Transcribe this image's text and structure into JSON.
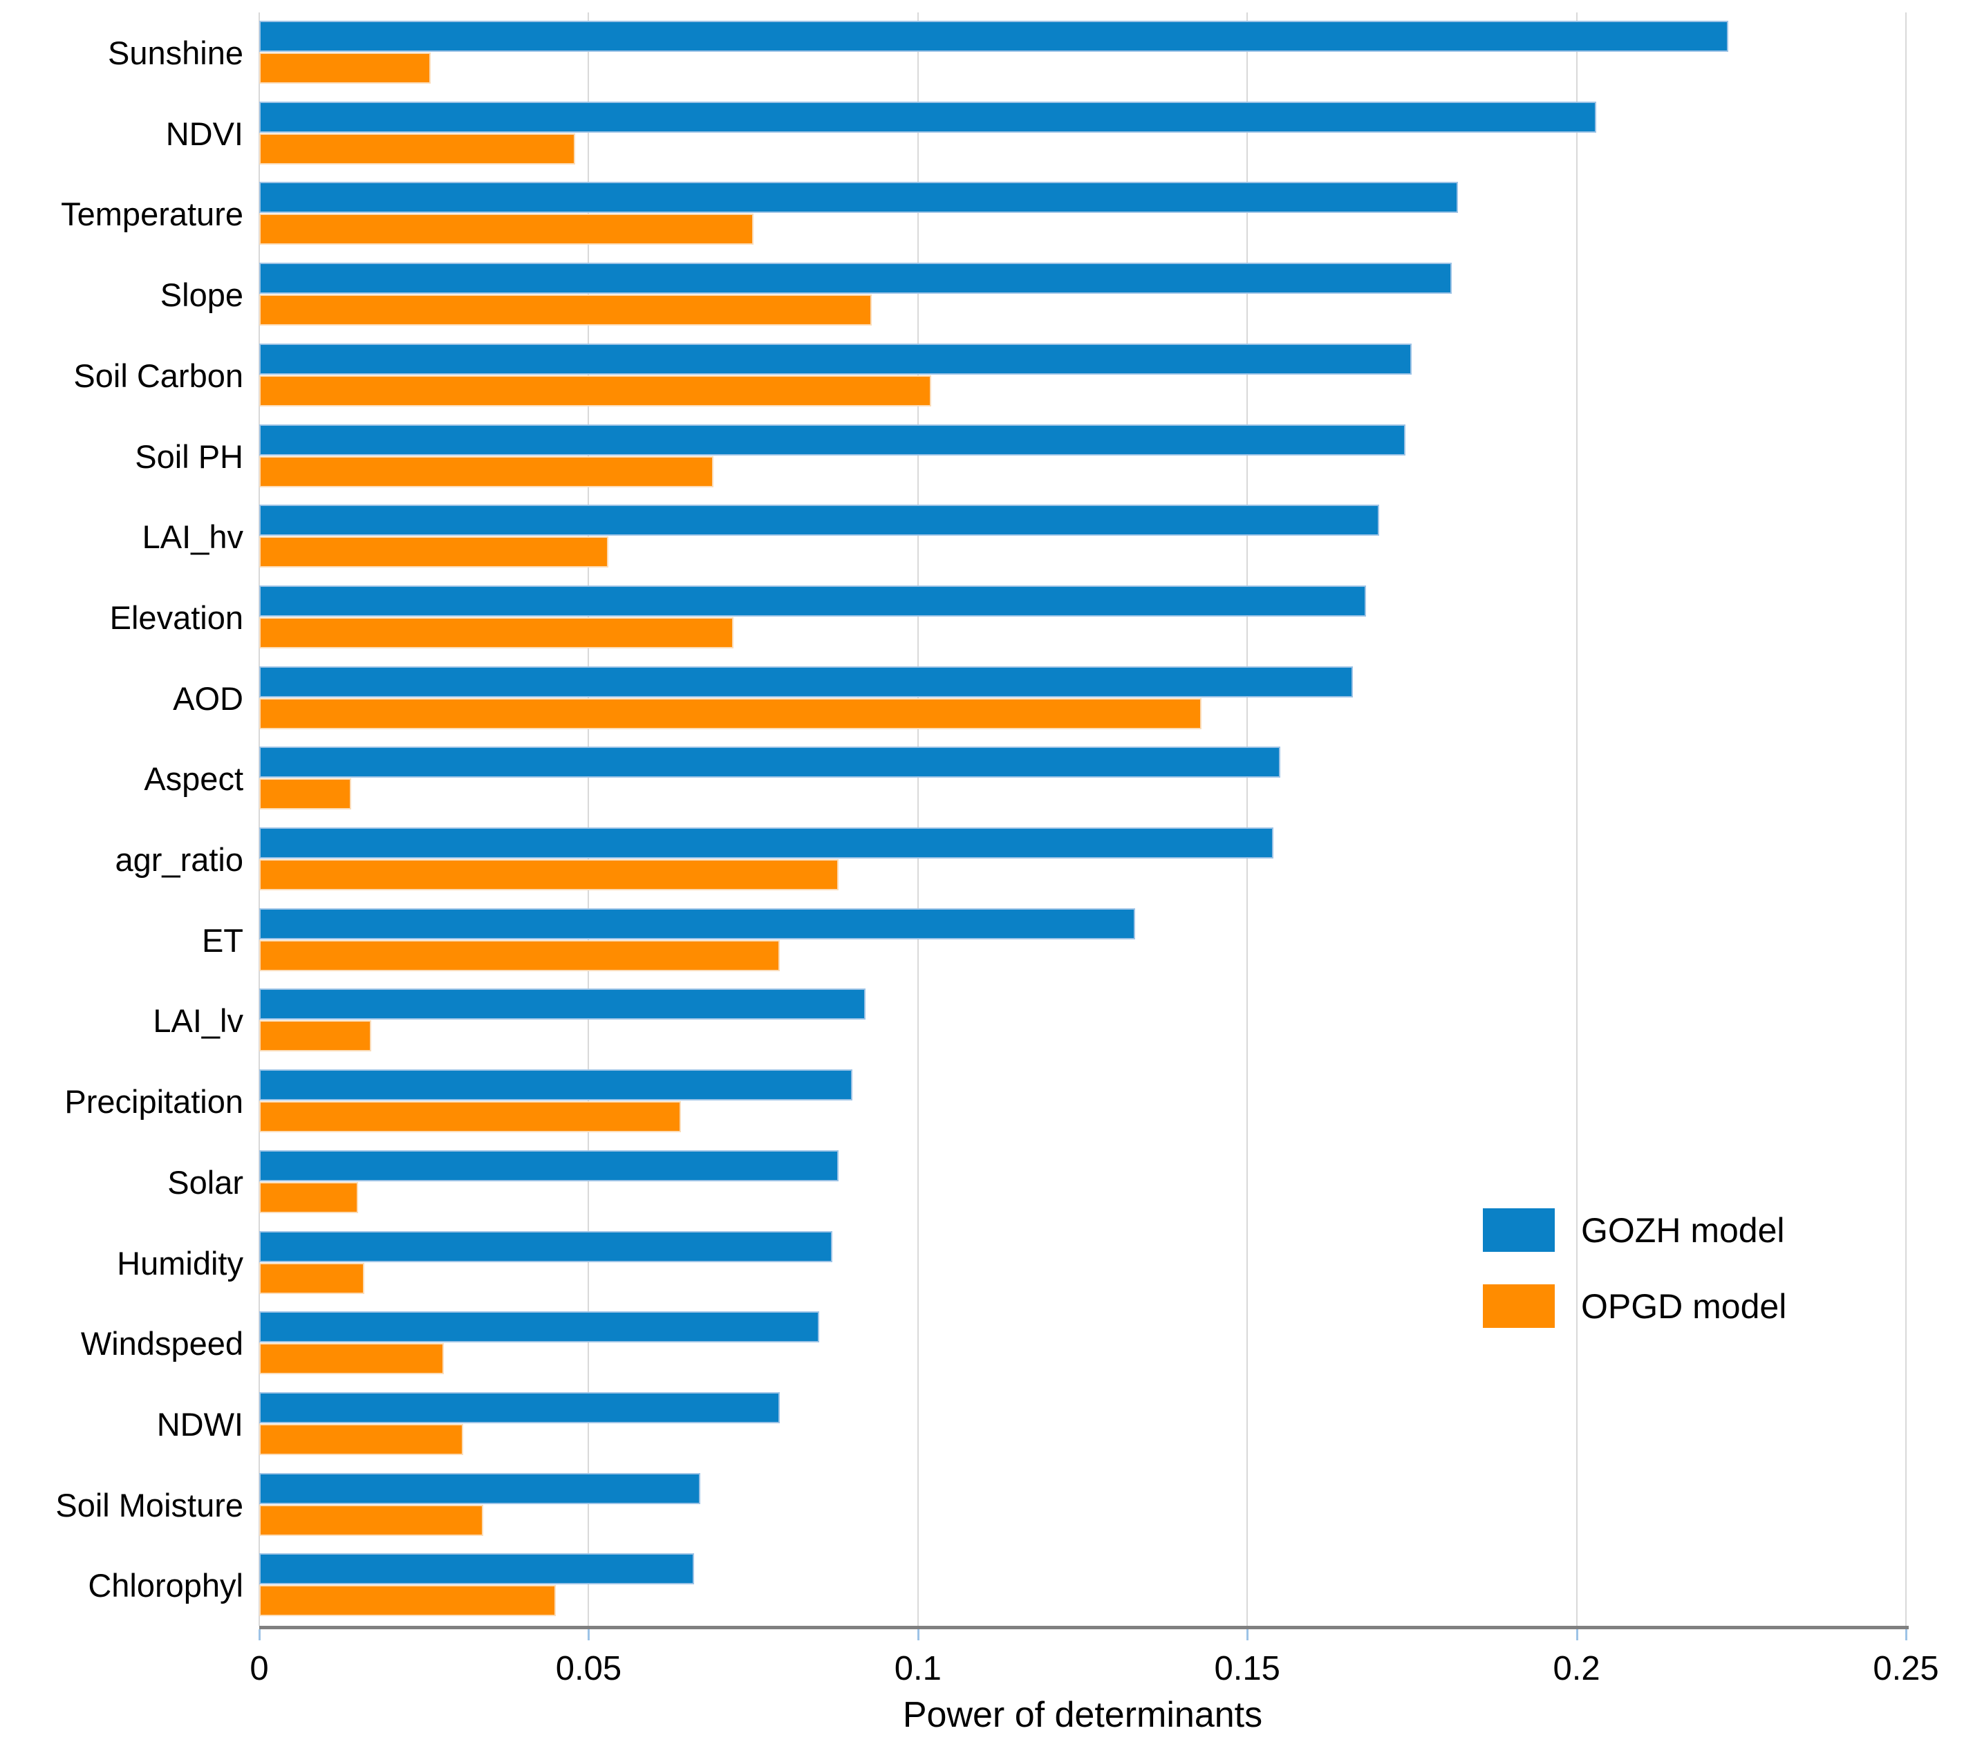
{
  "chart_data": {
    "type": "bar",
    "orientation": "horizontal",
    "title": "",
    "xlabel": "Power of determinants",
    "ylabel": "",
    "xlim": [
      0,
      0.25
    ],
    "xtick_values": [
      0,
      0.05,
      0.1,
      0.15,
      0.2,
      0.25
    ],
    "xtick_labels": [
      "0",
      "0.05",
      "0.1",
      "0.15",
      "0.2",
      "0.25"
    ],
    "grid": "vertical-gridlines-on",
    "legend_position": "right-middle",
    "categories": [
      "Sunshine",
      "NDVI",
      "Temperature",
      "Slope",
      "Soil Carbon",
      "Soil PH",
      "LAI_hv",
      "Elevation",
      "AOD",
      "Aspect",
      "agr_ratio",
      "ET",
      "LAI_lv",
      "Precipitation",
      "Solar",
      "Humidity",
      "Windspeed",
      "NDWI",
      "Soil Moisture",
      "Chlorophyl"
    ],
    "series": [
      {
        "name": "GOZH model",
        "color": "#0b81c6",
        "values": [
          0.223,
          0.203,
          0.182,
          0.181,
          0.175,
          0.174,
          0.17,
          0.168,
          0.166,
          0.155,
          0.154,
          0.133,
          0.092,
          0.09,
          0.088,
          0.087,
          0.085,
          0.079,
          0.067,
          0.066
        ]
      },
      {
        "name": "OPGD model",
        "color": "#ff8c00",
        "values": [
          0.026,
          0.048,
          0.075,
          0.093,
          0.102,
          0.069,
          0.053,
          0.072,
          0.143,
          0.014,
          0.088,
          0.079,
          0.017,
          0.064,
          0.015,
          0.016,
          0.028,
          0.031,
          0.034,
          0.045
        ]
      }
    ]
  },
  "colors": {
    "gozh_bar": "#0b81c6",
    "gozh_bar_border": "#9dc3e6",
    "opgd_bar": "#ff8c00",
    "opgd_bar_border": "#fbdcb8",
    "gridline": "#d9d9d9",
    "axis_line": "#808080",
    "tick_mark": "#9dc3e6",
    "text": "#000000",
    "background": "#ffffff"
  },
  "legend": {
    "items": [
      {
        "label": "GOZH model",
        "color": "#0b81c6"
      },
      {
        "label": "OPGD model",
        "color": "#ff8c00"
      }
    ]
  }
}
